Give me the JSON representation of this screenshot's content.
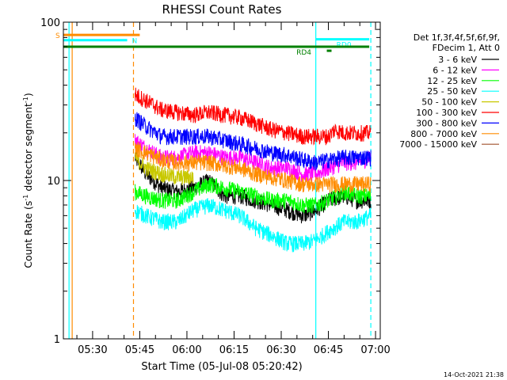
{
  "chart_data": {
    "type": "line",
    "title": "RHESSI Count Rates",
    "xlabel": "Start Time (05-Jul-08 05:20:42)",
    "ylabel_pre": "Count Rate (s",
    "ylabel_sup1": "-1",
    "ylabel_mid": " detector segment",
    "ylabel_sup2": "-1",
    "ylabel_post": ")",
    "y_scale": "log",
    "ylim": [
      1,
      100
    ],
    "y_ticks": [
      {
        "v": 1,
        "label": "1"
      },
      {
        "v": 10,
        "label": "10"
      },
      {
        "v": 100,
        "label": "100"
      }
    ],
    "x_ticks": [
      "05:30",
      "05:45",
      "06:00",
      "06:15",
      "06:30",
      "06:45",
      "07:00"
    ],
    "x_tick_minutes": [
      30,
      45,
      60,
      75,
      90,
      105,
      120
    ],
    "x_range_minutes": [
      20.7,
      121.5
    ],
    "data_start_minute": 43.5,
    "data_end_minute": 118.5,
    "legend_header": [
      "Det 1f,3f,4f,5f,6f,9f,",
      "FDecim 1, Att 0"
    ],
    "legend_placement": "right",
    "series": [
      {
        "name": "3 - 6 keV",
        "color": "#000000",
        "x": [
          43.5,
          47,
          52,
          57,
          62,
          67,
          72,
          77,
          82,
          87,
          92,
          97,
          101,
          105,
          110,
          114,
          118.5
        ],
        "y": [
          14,
          11,
          9,
          8.5,
          9,
          10,
          8,
          8,
          7.5,
          7,
          6.5,
          6,
          6.5,
          7.5,
          8,
          7.5,
          7.5
        ]
      },
      {
        "name": "6 - 12 keV",
        "color": "#ff00ff",
        "x": [
          43.5,
          47,
          52,
          57,
          62,
          67,
          72,
          77,
          82,
          87,
          92,
          97,
          101,
          105,
          110,
          114,
          118.5
        ],
        "y": [
          18,
          16,
          14,
          14,
          15,
          15,
          14,
          14,
          13,
          12,
          12,
          11,
          11,
          12,
          13,
          13,
          14
        ]
      },
      {
        "name": "12 - 25 keV",
        "color": "#00ff00",
        "x": [
          43.5,
          47,
          52,
          57,
          62,
          67,
          72,
          77,
          82,
          87,
          92,
          97,
          101,
          105,
          110,
          114,
          118.5
        ],
        "y": [
          8.5,
          8,
          7.5,
          7.5,
          8.5,
          9.5,
          9,
          8.5,
          8,
          7.5,
          7.5,
          7,
          7,
          7.5,
          8.5,
          8,
          8
        ]
      },
      {
        "name": "25 - 50 keV",
        "color": "#00ffff",
        "x": [
          43.5,
          47,
          52,
          57,
          62,
          67,
          72,
          77,
          82,
          87,
          92,
          97,
          101,
          105,
          110,
          114,
          118.5
        ],
        "y": [
          6.5,
          6,
          5.5,
          5.5,
          6.5,
          7,
          6.5,
          6,
          5,
          4.5,
          4,
          4,
          4.2,
          4.8,
          5.5,
          5.5,
          6
        ]
      },
      {
        "name": "50 - 100 keV",
        "color": "#c8c800",
        "x": [
          43.5,
          47,
          52,
          57,
          62
        ],
        "y": [
          14,
          12,
          11,
          10.5,
          10.5
        ]
      },
      {
        "name": "100 - 300 keV",
        "color": "#ff0000",
        "x": [
          43.5,
          47,
          52,
          57,
          62,
          67,
          72,
          77,
          82,
          87,
          92,
          97,
          101,
          105,
          107,
          110,
          114,
          118.5
        ],
        "y": [
          35,
          32,
          28,
          27,
          26,
          27,
          26,
          25,
          23,
          21,
          20,
          19,
          19,
          19,
          21,
          20,
          20,
          20
        ]
      },
      {
        "name": "300 - 800 keV",
        "color": "#0000ff",
        "x": [
          43.5,
          47,
          52,
          57,
          62,
          67,
          72,
          77,
          82,
          87,
          92,
          97,
          101,
          105,
          110,
          114,
          118.5
        ],
        "y": [
          25,
          22,
          19,
          19,
          19,
          19,
          18,
          17,
          16,
          15,
          14.5,
          13.5,
          13,
          13.5,
          14,
          14,
          14
        ]
      },
      {
        "name": "800 - 7000 keV",
        "color": "#ff8c00",
        "x": [
          43.5,
          47,
          52,
          57,
          62,
          67,
          72,
          77,
          82,
          87,
          92,
          97,
          101,
          105,
          110,
          114,
          118.5
        ],
        "y": [
          16,
          15,
          13.5,
          13,
          13,
          13,
          12.5,
          12,
          11,
          10.5,
          10,
          9.5,
          9.5,
          9.5,
          9.5,
          9.5,
          9.5
        ]
      },
      {
        "name": "7000 - 15000 keV",
        "color": "#a0522d",
        "x": [],
        "y": []
      }
    ],
    "state_bars": [
      {
        "label": "S",
        "color": "#ff8c00",
        "start_minute": 20.7,
        "end_minute": 45,
        "value": 83
      },
      {
        "label": "N",
        "color": "#00ffff",
        "start_minute": 20.7,
        "end_minute": 41,
        "value": 77
      },
      {
        "label": "RD0",
        "color": "#00ffff",
        "start_minute": 101,
        "end_minute": 118,
        "value": 78
      },
      {
        "label": "RD4",
        "color": "#008000",
        "start_minute": 20.7,
        "end_minute": 118,
        "value": 70
      }
    ],
    "vlines": [
      {
        "minute": 22.5,
        "color": "#00ffff",
        "style": "solid"
      },
      {
        "minute": 23.5,
        "color": "#ff8c00",
        "style": "solid"
      },
      {
        "minute": 43,
        "color": "#ff8c00",
        "style": "dashed"
      },
      {
        "minute": 101,
        "color": "#00ffff",
        "style": "solid"
      },
      {
        "minute": 118.5,
        "color": "#00ffff",
        "style": "dashed"
      }
    ],
    "timestamp": "14-Oct-2021 21:38"
  }
}
